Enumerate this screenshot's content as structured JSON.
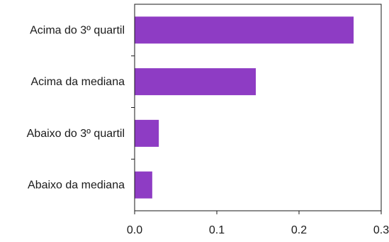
{
  "chart_data": {
    "type": "bar",
    "orientation": "horizontal",
    "title": "",
    "xlabel": "",
    "ylabel": "",
    "categories": [
      "Acima do 3º quartil",
      "Acima da mediana",
      "Abaixo do 3º quartil",
      "Abaixo da mediana"
    ],
    "values": [
      0.266,
      0.147,
      0.029,
      0.021
    ],
    "xlim": [
      0,
      0.3
    ],
    "xticks": [
      0.0,
      0.1,
      0.2,
      0.3
    ],
    "xtick_labels": [
      "0.0",
      "0.1",
      "0.2",
      "0.3"
    ],
    "grid": false,
    "legend": "none",
    "bar_color": "#8e3cc4",
    "axis_color": "#1a1a1a"
  }
}
